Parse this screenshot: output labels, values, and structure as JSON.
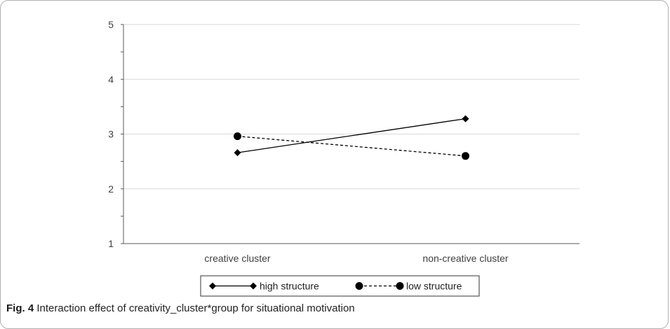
{
  "chart_data": {
    "type": "line",
    "categories": [
      "creative cluster",
      "non-creative cluster"
    ],
    "series": [
      {
        "name": "high structure",
        "values": [
          2.66,
          3.28
        ],
        "marker": "diamond",
        "line": "solid"
      },
      {
        "name": "low structure",
        "values": [
          2.96,
          2.6
        ],
        "marker": "circle",
        "line": "dashed"
      }
    ],
    "ylim": [
      1,
      5
    ],
    "yticks": [
      "1",
      "2",
      "3",
      "4",
      "5"
    ],
    "grid": true,
    "legend": "bottom",
    "colors": {
      "axis": "#595959",
      "grid": "#d9d9d9",
      "series": "#000000"
    }
  },
  "caption": {
    "label": "Fig. 4",
    "text": "Interaction effect of creativity_cluster*group for situational motivation"
  }
}
